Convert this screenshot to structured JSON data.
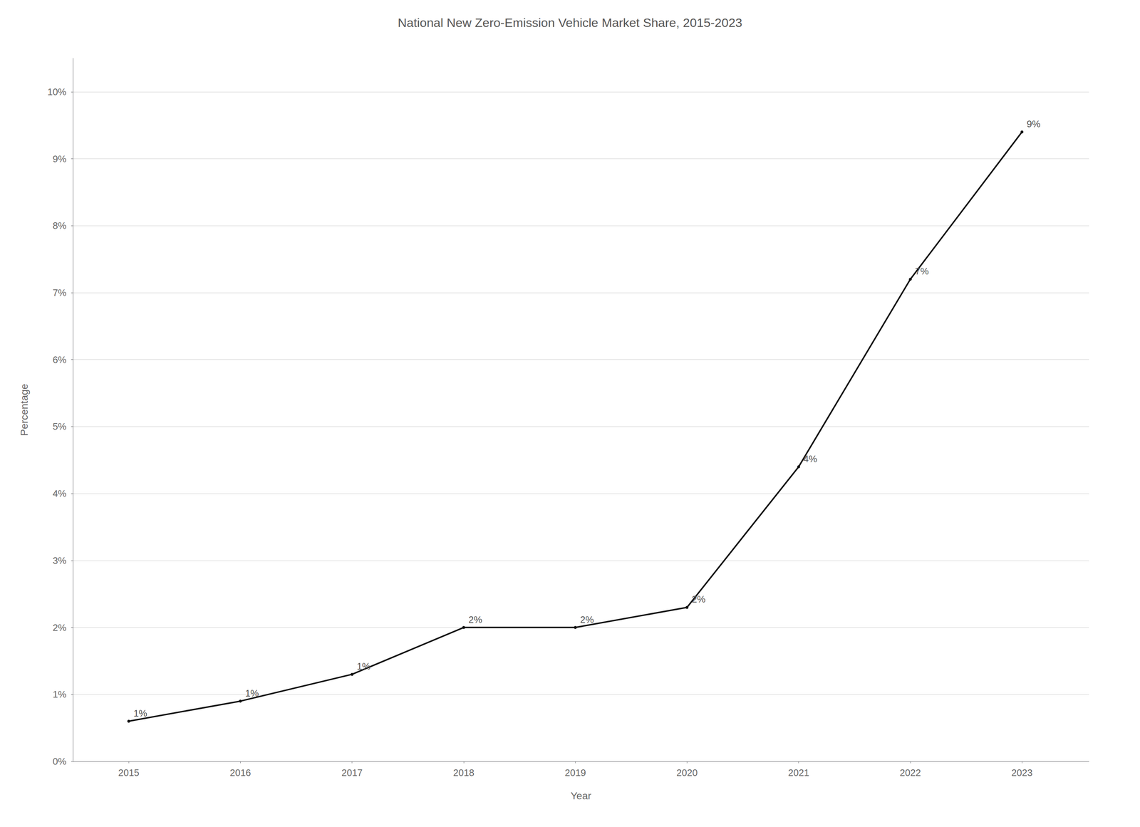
{
  "chart_data": {
    "type": "line",
    "title": "National New Zero-Emission Vehicle Market Share, 2015-2023",
    "xlabel": "Year",
    "ylabel": "Percentage",
    "x": [
      2015,
      2016,
      2017,
      2018,
      2019,
      2020,
      2021,
      2022,
      2023
    ],
    "values": [
      0.006,
      0.009,
      0.013,
      0.02,
      0.02,
      0.023,
      0.044,
      0.072,
      0.094
    ],
    "value_labels": [
      "1%",
      "1%",
      "1%",
      "2%",
      "2%",
      "2%",
      "4%",
      "7%",
      "9%"
    ],
    "data_labels": true,
    "color": "#111111",
    "xlim": [
      2014.5,
      2023.6
    ],
    "xticks": [
      2015,
      2016,
      2017,
      2018,
      2019,
      2020,
      2021,
      2022,
      2023
    ],
    "ylim": [
      0,
      0.105
    ],
    "yticks": [
      {
        "value": 0.0,
        "label": "0%"
      },
      {
        "value": 0.01,
        "label": "1%"
      },
      {
        "value": 0.02,
        "label": "2%"
      },
      {
        "value": 0.03,
        "label": "3%"
      },
      {
        "value": 0.04,
        "label": "4%"
      },
      {
        "value": 0.05,
        "label": "5%"
      },
      {
        "value": 0.06,
        "label": "6%"
      },
      {
        "value": 0.07,
        "label": "7%"
      },
      {
        "value": 0.08,
        "label": "8%"
      },
      {
        "value": 0.09,
        "label": "9%"
      },
      {
        "value": 0.1,
        "label": "10%"
      }
    ],
    "grid": true
  }
}
